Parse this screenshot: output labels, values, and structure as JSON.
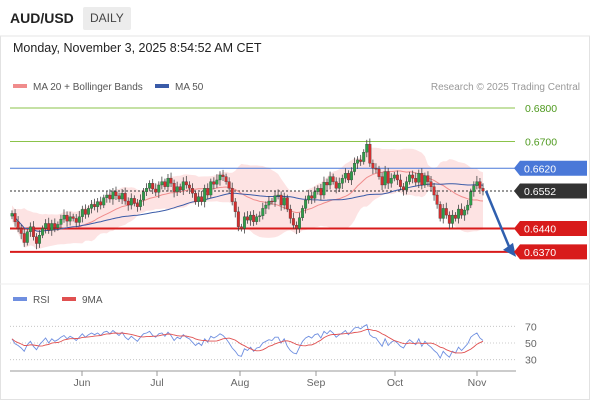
{
  "header": {
    "pair": "AUD/USD",
    "period": "DAILY",
    "datetime": "Monday, November 3, 2025 8:54:52 AM CET"
  },
  "legend": {
    "ma20": "MA 20 + Bollinger Bands",
    "ma50": "MA 50",
    "credit": "Research © 2025 Trading Central",
    "rsi": "RSI",
    "rsi_ma": "9MA"
  },
  "colors": {
    "up": "#2e9e4a",
    "down": "#d32f2f",
    "ma20": "#f08c8c",
    "ma50": "#3a5ba8",
    "band": "#fde3e3",
    "resistance_light": "#8bc34a",
    "pivot": "#4a78d8",
    "support": "#d81b1b",
    "current": "#333333",
    "rsi": "#6f8fe0",
    "rsi_ma": "#e05050",
    "arrow": "#2f5fae"
  },
  "chart_data": {
    "type": "candlestick",
    "x_labels": [
      "Jun",
      "Jul",
      "Aug",
      "Sep",
      "Oct",
      "Nov"
    ],
    "ylim": [
      0.628,
      0.683
    ],
    "levels": [
      {
        "value": 0.68,
        "label": "0.6800",
        "kind": "resistance_light"
      },
      {
        "value": 0.67,
        "label": "0.6700",
        "kind": "resistance_light"
      },
      {
        "value": 0.662,
        "label": "0.6620",
        "kind": "pivot"
      },
      {
        "value": 0.6552,
        "label": "0.6552",
        "kind": "current"
      },
      {
        "value": 0.644,
        "label": "0.6440",
        "kind": "support"
      },
      {
        "value": 0.637,
        "label": "0.6370",
        "kind": "support"
      }
    ],
    "closes": [
      0.6485,
      0.646,
      0.644,
      0.6425,
      0.6398,
      0.643,
      0.6445,
      0.6415,
      0.6395,
      0.642,
      0.644,
      0.6455,
      0.6435,
      0.6455,
      0.6442,
      0.6452,
      0.6468,
      0.648,
      0.6462,
      0.6475,
      0.647,
      0.6458,
      0.6475,
      0.6497,
      0.6482,
      0.65,
      0.6512,
      0.6505,
      0.652,
      0.651,
      0.6532,
      0.654,
      0.6528,
      0.655,
      0.6538,
      0.6528,
      0.6545,
      0.6522,
      0.651,
      0.653,
      0.6515,
      0.6505,
      0.6525,
      0.655,
      0.656,
      0.6575,
      0.6558,
      0.6548,
      0.657,
      0.658,
      0.6565,
      0.659,
      0.6575,
      0.655,
      0.6565,
      0.6555,
      0.658,
      0.657,
      0.656,
      0.6545,
      0.652,
      0.6535,
      0.652,
      0.656,
      0.654,
      0.658,
      0.6572,
      0.6585,
      0.66,
      0.6595,
      0.658,
      0.656,
      0.652,
      0.649,
      0.6445,
      0.644,
      0.6475,
      0.6465,
      0.648,
      0.646,
      0.6475,
      0.6478,
      0.65,
      0.651,
      0.6522,
      0.652,
      0.6538,
      0.654,
      0.651,
      0.6532,
      0.6498,
      0.647,
      0.645,
      0.644,
      0.6472,
      0.65,
      0.6525,
      0.6538,
      0.653,
      0.655,
      0.656,
      0.654,
      0.6578,
      0.657,
      0.6595,
      0.658,
      0.656,
      0.6575,
      0.659,
      0.6605,
      0.6585,
      0.661,
      0.6635,
      0.6645,
      0.664,
      0.6668,
      0.6692,
      0.6635,
      0.662,
      0.6618,
      0.6595,
      0.657,
      0.661,
      0.6575,
      0.659,
      0.66,
      0.6585,
      0.6565,
      0.6555,
      0.658,
      0.66,
      0.659,
      0.6578,
      0.6605,
      0.657,
      0.6598,
      0.658,
      0.6565,
      0.654,
      0.6512,
      0.647,
      0.65,
      0.648,
      0.6455,
      0.648,
      0.647,
      0.6498,
      0.648,
      0.6495,
      0.651,
      0.655,
      0.6568,
      0.658,
      0.656,
      0.6552
    ],
    "rsi": [
      55,
      49,
      47,
      44,
      40,
      48,
      52,
      46,
      42,
      48,
      52,
      56,
      50,
      55,
      52,
      54,
      57,
      59,
      55,
      58,
      56,
      53,
      57,
      61,
      57,
      60,
      62,
      60,
      62,
      59,
      63,
      64,
      61,
      65,
      62,
      59,
      63,
      57,
      54,
      58,
      55,
      52,
      57,
      61,
      62,
      64,
      59,
      57,
      61,
      62,
      58,
      63,
      59,
      53,
      57,
      55,
      60,
      57,
      55,
      51,
      47,
      50,
      47,
      55,
      51,
      58,
      56,
      58,
      61,
      59,
      55,
      50,
      44,
      40,
      35,
      34,
      43,
      41,
      45,
      40,
      44,
      45,
      50,
      52,
      54,
      53,
      57,
      57,
      50,
      55,
      46,
      41,
      38,
      37,
      45,
      52,
      56,
      58,
      56,
      60,
      61,
      56,
      64,
      61,
      65,
      62,
      57,
      60,
      62,
      65,
      60,
      64,
      68,
      69,
      67,
      70,
      72,
      60,
      57,
      56,
      51,
      46,
      55,
      47,
      51,
      53,
      50,
      46,
      44,
      50,
      54,
      51,
      48,
      55,
      46,
      52,
      48,
      45,
      41,
      38,
      32,
      40,
      36,
      33,
      40,
      38,
      45,
      41,
      45,
      49,
      57,
      60,
      62,
      56,
      53
    ],
    "rsi_levels": [
      70,
      50,
      30
    ]
  }
}
